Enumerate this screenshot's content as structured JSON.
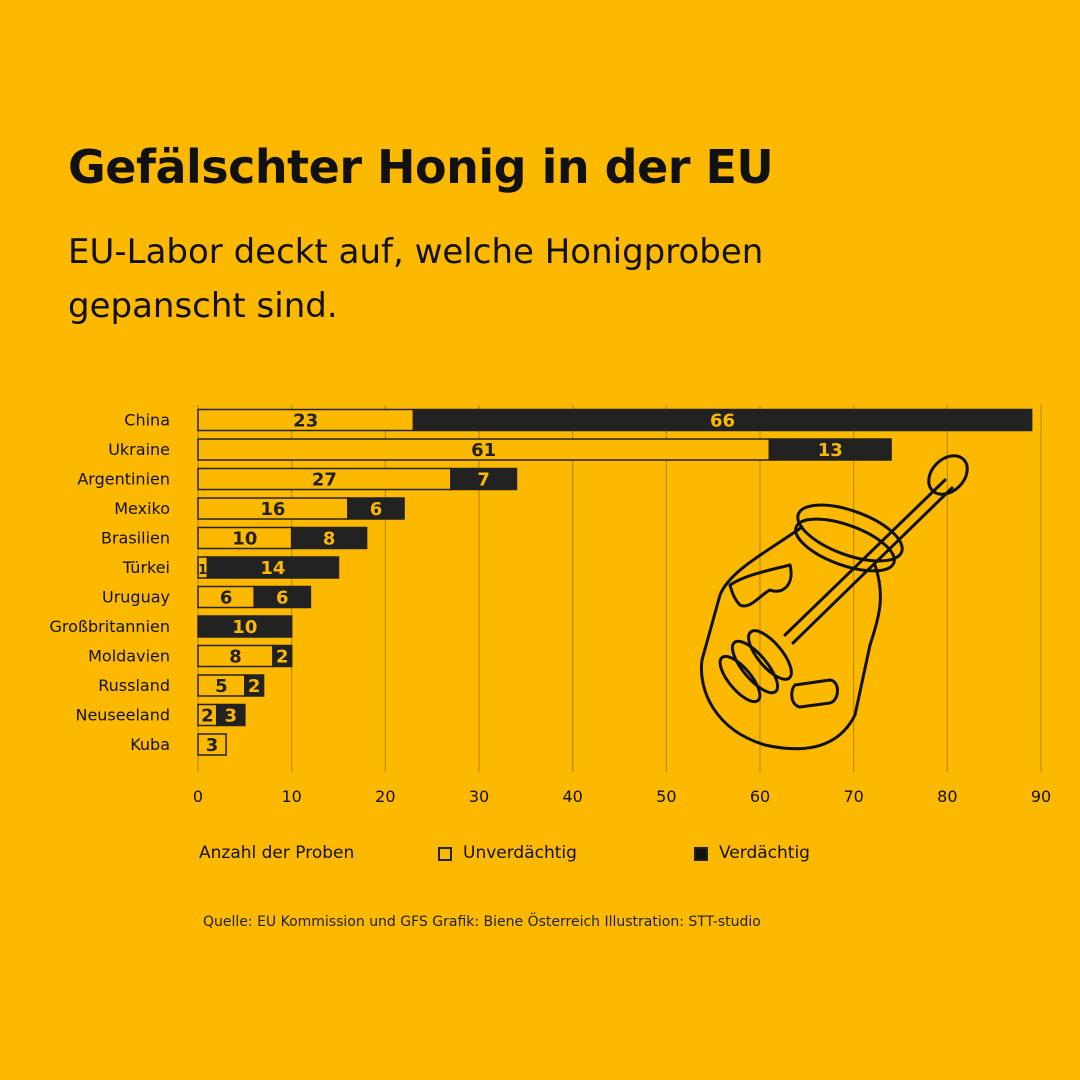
{
  "header": {
    "title": "Gefälschter Honig in der EU",
    "subtitle": "EU-Labor deckt auf, welche Honigproben gepanscht sind."
  },
  "colors": {
    "background": "#FDB900",
    "suspicious": "#222222",
    "unsuspicious": "#FDB900",
    "ink": "#111111"
  },
  "chart_data": {
    "type": "bar",
    "orientation": "horizontal",
    "stacked": true,
    "title": "Gefälschter Honig in der EU",
    "xlabel": "Anzahl der Proben",
    "ylabel": "",
    "xlim": [
      0,
      90
    ],
    "xticks": [
      0,
      10,
      20,
      30,
      40,
      50,
      60,
      70,
      80,
      90
    ],
    "grid": true,
    "legend_position": "bottom",
    "categories": [
      "China",
      "Ukraine",
      "Argentinien",
      "Mexiko",
      "Brasilien",
      "Türkei",
      "Uruguay",
      "Großbritannien",
      "Moldavien",
      "Russland",
      "Neuseeland",
      "Kuba"
    ],
    "series": [
      {
        "name": "Unverdächtig",
        "values": [
          23,
          61,
          27,
          16,
          10,
          1,
          6,
          0,
          8,
          5,
          2,
          3
        ]
      },
      {
        "name": "Verdächtig",
        "values": [
          66,
          13,
          7,
          6,
          8,
          14,
          6,
          10,
          2,
          2,
          3,
          0
        ]
      }
    ]
  },
  "legend": {
    "axis_label": "Anzahl der Proben",
    "unsuspicious": "Unverdächtig",
    "suspicious": "Verdächtig"
  },
  "footer": {
    "source": "Quelle: EU Kommission und GFS Grafik: Biene Österreich  Illustration: STT-studio"
  }
}
